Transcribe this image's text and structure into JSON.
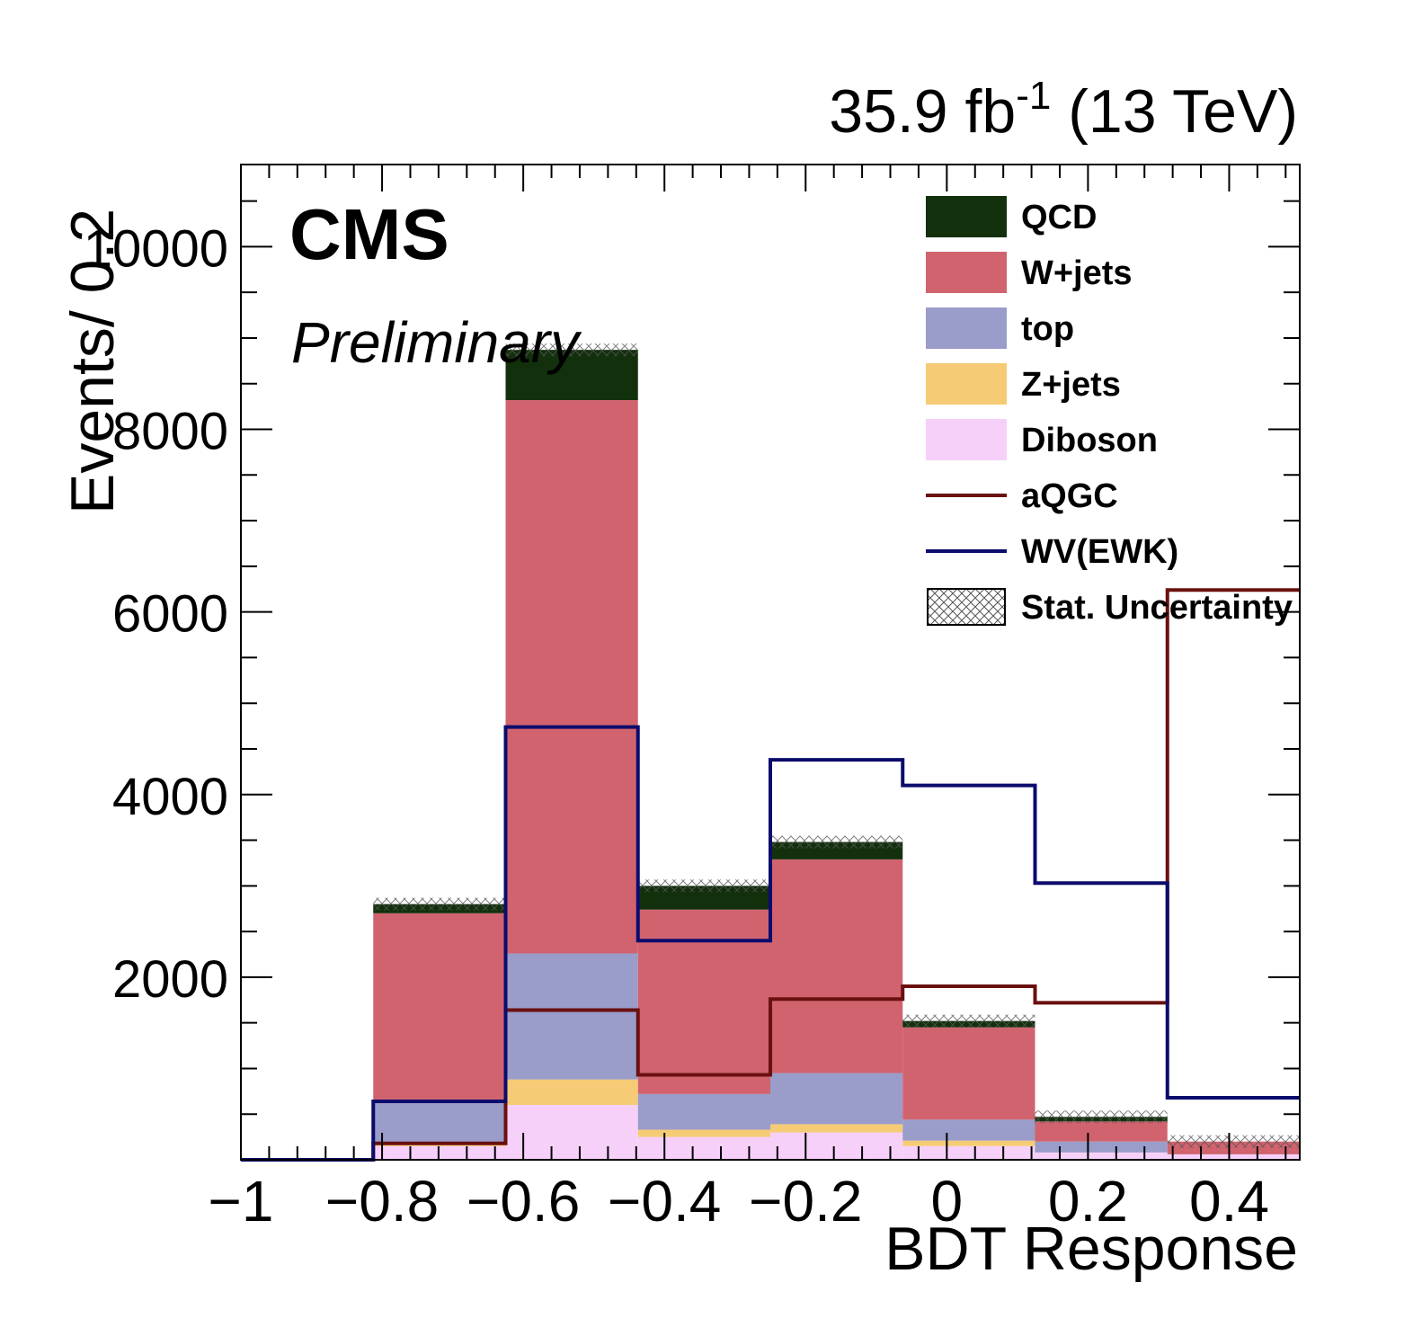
{
  "header": {
    "lumi": "35.9 fb",
    "lumi_exp": "-1",
    "energy": " (13 TeV)",
    "experiment": "CMS",
    "status": "Preliminary"
  },
  "chart_data": {
    "type": "bar",
    "stacked": true,
    "histogram": true,
    "xlabel": "BDT Response",
    "ylabel": "Events/ 0.2",
    "xlim": [
      -1.0,
      0.5
    ],
    "ylim": [
      0,
      10900
    ],
    "bin_edges": [
      -1.0,
      -0.8125,
      -0.625,
      -0.4375,
      -0.25,
      -0.0625,
      0.125,
      0.3125,
      0.5
    ],
    "x_ticks": [
      -1,
      -0.8,
      -0.6,
      -0.4,
      -0.2,
      0,
      0.2,
      0.4
    ],
    "x_tick_labels": [
      "−1",
      "−0.8",
      "−0.6",
      "−0.4",
      "−0.2",
      "0",
      "0.2",
      "0.4"
    ],
    "y_ticks": [
      2000,
      4000,
      6000,
      8000,
      10000
    ],
    "y_tick_labels": [
      "2000",
      "4000",
      "6000",
      "8000",
      "10000"
    ],
    "legend_position": "top-right",
    "stack_order": [
      "Diboson",
      "Z+jets",
      "top",
      "W+jets",
      "QCD"
    ],
    "series": [
      {
        "name": "Diboson",
        "color": "#f6d0f9",
        "values": [
          0,
          150,
          600,
          250,
          300,
          150,
          80,
          60
        ]
      },
      {
        "name": "Z+jets",
        "color": "#f6cb75",
        "values": [
          0,
          30,
          280,
          80,
          90,
          60,
          0,
          0
        ]
      },
      {
        "name": "top",
        "color": "#9a9cca",
        "values": [
          0,
          480,
          1380,
          390,
          560,
          230,
          120,
          0
        ]
      },
      {
        "name": "W+jets",
        "color": "#d0636e",
        "values": [
          0,
          2040,
          6060,
          2020,
          2340,
          1010,
          220,
          140
        ]
      },
      {
        "name": "QCD",
        "color": "#13300c",
        "values": [
          0,
          100,
          550,
          260,
          190,
          70,
          50,
          0
        ]
      }
    ],
    "lines": [
      {
        "name": "aQGC",
        "color": "#6b1010",
        "values": [
          0,
          180,
          1640,
          930,
          1760,
          1900,
          1720,
          6240
        ]
      },
      {
        "name": "WV(EWK)",
        "color": "#0c0c6c",
        "values": [
          0,
          640,
          4740,
          2400,
          4380,
          4100,
          3030,
          680
        ]
      }
    ],
    "uncertainty": {
      "name": "Stat. Uncertainty",
      "pattern": "cross-hatch"
    },
    "legend": [
      {
        "label": "QCD",
        "kind": "fill",
        "color": "#13300c"
      },
      {
        "label": "W+jets",
        "kind": "fill",
        "color": "#d0636e"
      },
      {
        "label": "top",
        "kind": "fill",
        "color": "#9a9cca"
      },
      {
        "label": "Z+jets",
        "kind": "fill",
        "color": "#f6cb75"
      },
      {
        "label": "Diboson",
        "kind": "fill",
        "color": "#f6d0f9"
      },
      {
        "label": "aQGC",
        "kind": "line",
        "color": "#6b1010"
      },
      {
        "label": "WV(EWK)",
        "kind": "line",
        "color": "#0c0c6c"
      },
      {
        "label": "Stat. Uncertainty",
        "kind": "hatch",
        "color": "#000000"
      }
    ]
  }
}
